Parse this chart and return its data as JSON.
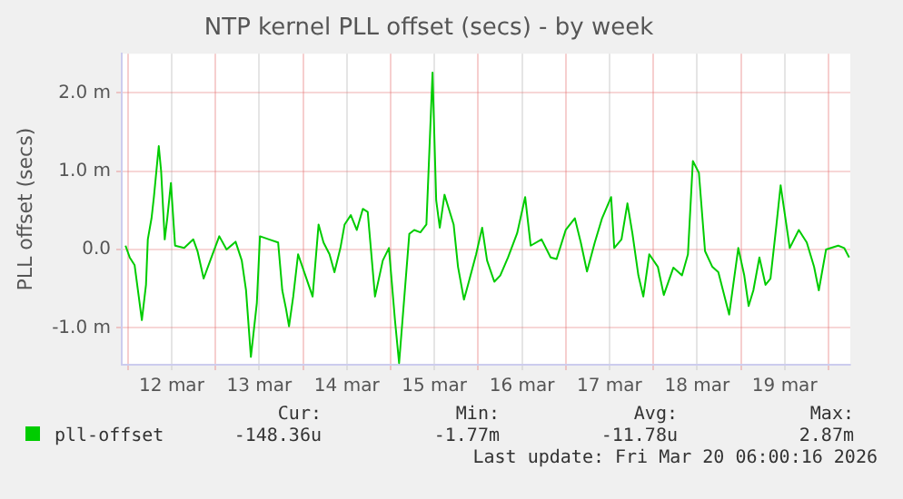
{
  "chart_data": {
    "type": "line",
    "title": "NTP kernel PLL offset (secs) - by week",
    "ylabel": "PLL offset (secs)",
    "x": [
      "--03-11T23:21",
      "--03-12T00:30",
      "--03-12T01:51",
      "--03-12T02:59",
      "--03-12T03:50",
      "--03-12T04:58",
      "--03-12T05:28",
      "--03-12T06:29",
      "--03-12T07:08",
      "--03-12T08:28",
      "--03-12T09:07",
      "--03-12T10:06",
      "--03-12T10:48",
      "--03-12T11:48",
      "--03-12T12:56",
      "--03-12T15:26",
      "--03-12T17:56",
      "--03-12T19:05",
      "--03-12T20:46",
      "--03-12T22:54",
      "--03-13T01:03",
      "--03-13T03:03",
      "--03-13T05:31",
      "--03-13T07:13",
      "--03-13T08:23",
      "--03-13T09:43",
      "--03-13T11:21",
      "--03-13T12:12",
      "--03-13T14:41",
      "--03-13T17:11",
      "--03-13T18:19",
      "--03-13T19:19",
      "--03-13T20:10",
      "--03-13T21:19",
      "--03-13T22:39",
      "--03-14T00:39",
      "--03-14T02:38",
      "--03-14T04:16",
      "--03-14T05:37",
      "--03-14T07:16",
      "--03-14T08:37",
      "--03-14T10:15",
      "--03-14T11:24",
      "--03-14T13:06",
      "--03-14T14:44",
      "--03-14T16:24",
      "--03-14T17:44",
      "--03-14T19:44",
      "--03-14T21:52",
      "--03-14T23:33",
      "--03-15T01:12",
      "--03-15T02:20",
      "--03-15T04:02",
      "--03-15T05:08",
      "--03-15T06:29",
      "--03-15T08:10",
      "--03-15T09:49",
      "--03-15T11:30",
      "--03-15T12:30",
      "--03-15T13:29",
      "--03-15T14:47",
      "--03-15T17:17",
      "--03-15T18:29",
      "--03-15T20:07",
      "--03-15T21:27",
      "--03-15T23:27",
      "--03-16T01:06",
      "--03-16T02:27",
      "--03-16T04:26",
      "--03-16T06:04",
      "--03-16T08:12",
      "--03-16T10:42",
      "--03-16T12:53",
      "--03-16T14:24",
      "--03-16T17:23",
      "--03-16T19:52",
      "--03-16T21:30",
      "--03-17T00:00",
      "--03-17T02:30",
      "--03-17T04:08",
      "--03-17T05:50",
      "--03-17T07:58",
      "--03-17T09:58",
      "--03-17T12:27",
      "--03-17T13:18",
      "--03-17T15:17",
      "--03-17T16:55",
      "--03-17T18:16",
      "--03-17T19:55",
      "--03-17T21:16",
      "--03-17T22:54",
      "--03-18T01:15",
      "--03-18T02:53",
      "--03-18T05:31",
      "--03-18T07:52",
      "--03-18T09:30",
      "--03-18T10:51",
      "--03-18T12:30",
      "--03-18T14:11",
      "--03-18T16:11",
      "--03-18T17:50",
      "--03-18T20:48",
      "--03-18T23:18",
      "--03-19T00:56",
      "--03-19T02:08",
      "--03-19T03:26",
      "--03-19T05:05",
      "--03-19T06:46",
      "--03-19T08:07",
      "--03-19T09:46",
      "--03-19T10:54",
      "--03-19T13:24",
      "--03-19T15:53",
      "--03-19T18:04",
      "--03-19T20:04",
      "--03-19T21:22",
      "--03-19T23:21",
      "--03-20T02:41",
      "--03-20T04:19",
      "--03-20T05:41"
    ],
    "series": [
      {
        "name": "pll-offset",
        "color": "#00cc00",
        "values": [
          0.05,
          -0.1,
          -0.2,
          -0.6,
          -0.9,
          -0.45,
          0.13,
          0.4,
          0.67,
          1.32,
          1.0,
          0.13,
          0.4,
          0.85,
          0.05,
          0.02,
          0.13,
          -0.02,
          -0.37,
          -0.1,
          0.17,
          0,
          0.1,
          -0.14,
          -0.52,
          -1.37,
          -0.68,
          0.17,
          0.13,
          0.09,
          -0.52,
          -0.75,
          -0.98,
          -0.6,
          -0.06,
          -0.33,
          -0.6,
          0.32,
          0.09,
          -0.06,
          -0.29,
          0.02,
          0.32,
          0.44,
          0.25,
          0.52,
          0.48,
          -0.6,
          -0.14,
          0.02,
          -0.9,
          -1.45,
          -0.45,
          0.2,
          0.25,
          0.22,
          0.32,
          2.26,
          0.63,
          0.28,
          0.7,
          0.32,
          -0.22,
          -0.64,
          -0.41,
          -0.06,
          0.28,
          -0.14,
          -0.41,
          -0.33,
          -0.1,
          0.21,
          0.67,
          0.05,
          0.13,
          -0.1,
          -0.12,
          0.25,
          0.4,
          0.09,
          -0.28,
          0.09,
          0.4,
          0.67,
          0.02,
          0.13,
          0.59,
          0.21,
          -0.33,
          -0.6,
          -0.06,
          -0.22,
          -0.58,
          -0.23,
          -0.33,
          -0.06,
          1.13,
          0.98,
          -0.02,
          -0.22,
          -0.29,
          -0.83,
          0.02,
          -0.33,
          -0.72,
          -0.52,
          -0.1,
          -0.45,
          -0.37,
          0.32,
          0.82,
          0.02,
          0.25,
          0.09,
          -0.22,
          -0.52,
          0,
          0.05,
          0.02,
          -0.1
        ]
      }
    ],
    "xlim": [
      "--03-11T22:19",
      "--03-20T06:00"
    ],
    "xticks": [
      {
        "value": "--03-12T00:00",
        "label": null
      },
      {
        "value": "--03-12T12:00",
        "label": "12 mar"
      },
      {
        "value": "--03-13T00:00",
        "label": null
      },
      {
        "value": "--03-13T12:00",
        "label": "13 mar"
      },
      {
        "value": "--03-14T00:00",
        "label": null
      },
      {
        "value": "--03-14T12:00",
        "label": "14 mar"
      },
      {
        "value": "--03-15T00:00",
        "label": null
      },
      {
        "value": "--03-15T12:00",
        "label": "15 mar"
      },
      {
        "value": "--03-16T00:00",
        "label": null
      },
      {
        "value": "--03-16T12:00",
        "label": "16 mar"
      },
      {
        "value": "--03-17T00:00",
        "label": null
      },
      {
        "value": "--03-17T12:00",
        "label": "17 mar"
      },
      {
        "value": "--03-18T00:00",
        "label": null
      },
      {
        "value": "--03-18T12:00",
        "label": "18 mar"
      },
      {
        "value": "--03-19T00:00",
        "label": null
      },
      {
        "value": "--03-19T12:00",
        "label": "19 mar"
      },
      {
        "value": "--03-20T00:00",
        "label": null
      }
    ],
    "ylim": [
      -1.47,
      2.5
    ],
    "yticks": [
      {
        "value": -1,
        "label": "-1.0 m"
      },
      {
        "value": 0,
        "label": "0.0"
      },
      {
        "value": 1,
        "label": "1.0 m"
      },
      {
        "value": 2,
        "label": "2.0 m"
      }
    ],
    "grid": true,
    "legend": "bottom",
    "marker": "none",
    "line_style": "solid",
    "annotations": [
      "Cur:",
      "Min:",
      "Avg:",
      "Max:",
      "-148.36u",
      "-1.77m",
      "-11.78u",
      "2.87m",
      "Last update: Fri Mar 20 06:00:16 2026"
    ]
  }
}
